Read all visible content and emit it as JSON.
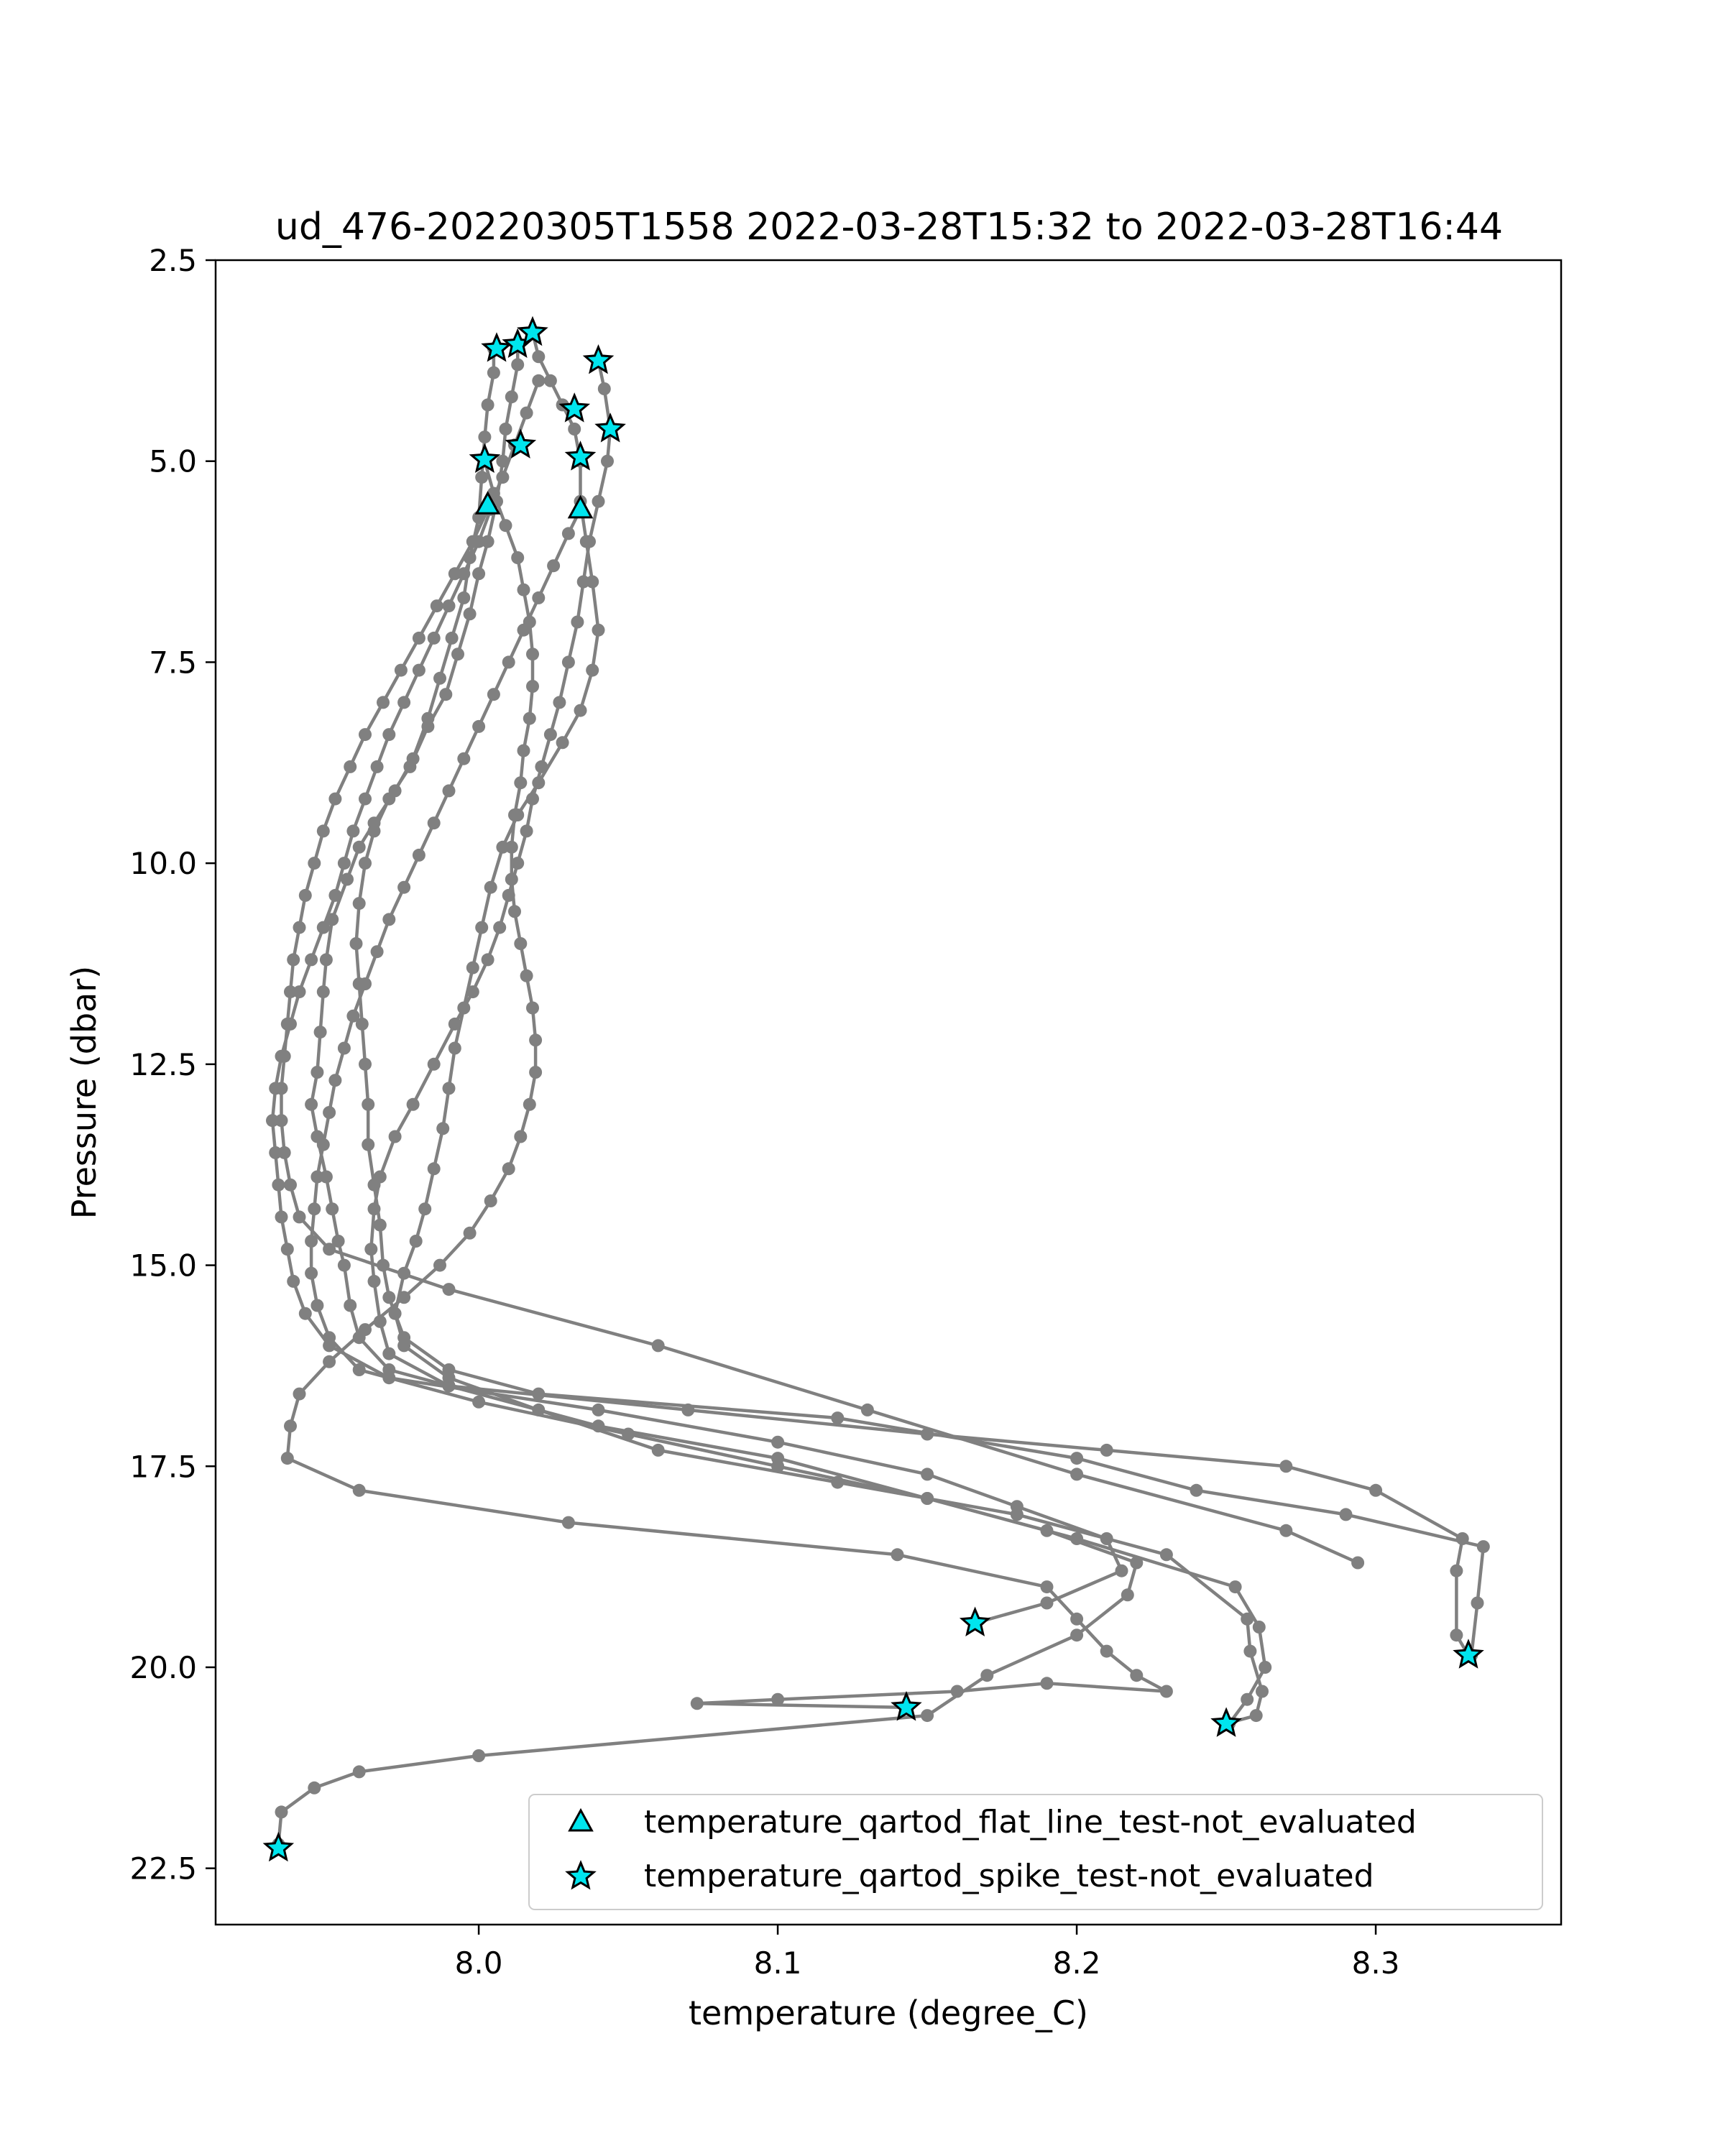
{
  "chart_data": {
    "type": "scatter",
    "title": "ud_476-20220305T1558 2022-03-28T15:32 to 2022-03-28T16:44",
    "xlabel": "temperature (degree_C)",
    "ylabel": "Pressure (dbar)",
    "xlim": [
      7.912,
      8.362
    ],
    "ylim": [
      23.2,
      2.5
    ],
    "y_inverted": true,
    "grid": false,
    "legend_position": "lower-right",
    "x_ticks": [
      8.0,
      8.1,
      8.2,
      8.3
    ],
    "x_tick_labels": [
      "8.0",
      "8.1",
      "8.2",
      "8.3"
    ],
    "y_ticks": [
      2.5,
      5.0,
      7.5,
      10.0,
      12.5,
      15.0,
      17.5,
      20.0,
      22.5
    ],
    "y_tick_labels": [
      "2.5",
      "5.0",
      "7.5",
      "10.0",
      "12.5",
      "15.0",
      "17.5",
      "20.0",
      "22.5"
    ],
    "colors": {
      "profile": "#808080",
      "marker_fill": "#00e5ee",
      "marker_edge": "#000000"
    },
    "series": [
      {
        "kind": "profile",
        "x": [
          8.005,
          8.005,
          8.003,
          8.002,
          8.001,
          8.0,
          7.997,
          7.995,
          7.991,
          7.987,
          7.983,
          7.978,
          7.972,
          7.965,
          7.96,
          7.956,
          7.951,
          7.949,
          7.948,
          7.947,
          7.946,
          7.944,
          7.946,
          7.949,
          7.951,
          7.953,
          7.955,
          7.957,
          7.96,
          7.97,
          7.99,
          8.07,
          8.15,
          8.21,
          8.27,
          8.3,
          8.329,
          8.327,
          8.327,
          8.331
        ],
        "y": [
          3.6,
          3.9,
          4.3,
          4.7,
          5.2,
          5.7,
          6.2,
          6.7,
          7.2,
          7.7,
          8.2,
          8.7,
          9.1,
          9.5,
          9.8,
          10.2,
          10.7,
          11.2,
          11.6,
          12.1,
          12.6,
          13.0,
          13.4,
          13.9,
          14.3,
          14.7,
          15.0,
          15.5,
          15.9,
          16.3,
          16.5,
          16.8,
          17.1,
          17.3,
          17.5,
          17.8,
          18.4,
          18.8,
          19.6,
          19.85
        ]
      },
      {
        "kind": "profile",
        "x": [
          8.013,
          8.013,
          8.011,
          8.009,
          8.008,
          8.006,
          8.003,
          8.0,
          7.997,
          7.993,
          7.989,
          7.983,
          7.977,
          7.97,
          7.965,
          7.962,
          7.96,
          7.959,
          7.96,
          7.961,
          7.962,
          7.963,
          7.963,
          7.965,
          7.967,
          7.968,
          7.97,
          7.975,
          7.99,
          8.02,
          8.12,
          8.2,
          8.24,
          8.29,
          8.336,
          8.334,
          8.332
        ],
        "y": [
          3.55,
          3.8,
          4.2,
          4.6,
          5.0,
          5.5,
          6.0,
          6.4,
          6.9,
          7.4,
          7.9,
          8.3,
          8.8,
          9.2,
          9.6,
          10.0,
          10.5,
          11.0,
          11.5,
          12.0,
          12.5,
          13.0,
          13.5,
          14.0,
          14.5,
          15.0,
          15.4,
          15.9,
          16.3,
          16.6,
          16.9,
          17.4,
          17.8,
          18.1,
          18.5,
          19.2,
          19.85
        ]
      },
      {
        "kind": "profile",
        "x": [
          8.018,
          8.02,
          8.024,
          8.028,
          8.032,
          8.034,
          8.034,
          8.036,
          8.038,
          8.04,
          8.038,
          8.034,
          8.028,
          8.02,
          8.013,
          8.008,
          8.004,
          8.001,
          7.998,
          7.995,
          7.992,
          7.99,
          7.988,
          7.985,
          7.982,
          7.979,
          7.975,
          7.972,
          7.975,
          7.99,
          8.02,
          8.06,
          8.12,
          8.18,
          8.23,
          8.257,
          8.258,
          8.262,
          8.26,
          8.25
        ],
        "y": [
          3.4,
          3.7,
          4.0,
          4.3,
          4.6,
          5.0,
          5.5,
          6.0,
          6.5,
          7.1,
          7.6,
          8.1,
          8.5,
          9.0,
          9.4,
          9.8,
          10.3,
          10.8,
          11.3,
          11.8,
          12.3,
          12.8,
          13.3,
          13.8,
          14.3,
          14.7,
          15.1,
          15.6,
          16.0,
          16.4,
          16.8,
          17.3,
          17.7,
          18.1,
          18.6,
          19.4,
          19.8,
          20.3,
          20.6,
          20.7
        ]
      },
      {
        "kind": "profile",
        "x": [
          8.04,
          8.042,
          8.044,
          8.043,
          8.04,
          8.037,
          8.035,
          8.033,
          8.03,
          8.027,
          8.024,
          8.021,
          8.018,
          8.016,
          8.013,
          8.01,
          8.007,
          8.003,
          7.998,
          7.992,
          7.985,
          7.978,
          7.972,
          7.967,
          7.965,
          7.964,
          7.965,
          7.967,
          7.97,
          7.99,
          8.04,
          8.1,
          8.15,
          8.2,
          8.253,
          8.261,
          8.263,
          8.257,
          8.251
        ],
        "y": [
          3.75,
          4.1,
          4.6,
          5.0,
          5.5,
          6.0,
          6.5,
          7.0,
          7.5,
          8.0,
          8.4,
          8.8,
          9.2,
          9.6,
          10.0,
          10.4,
          10.8,
          11.2,
          11.6,
          12.0,
          12.5,
          13.0,
          13.4,
          13.9,
          14.3,
          14.8,
          15.2,
          15.7,
          16.1,
          16.5,
          17.0,
          17.4,
          17.9,
          18.4,
          19.0,
          19.5,
          20.0,
          20.4,
          20.7
        ]
      },
      {
        "kind": "profile",
        "x": [
          8.002,
          8.005,
          8.009,
          8.013,
          8.015,
          8.017,
          8.018,
          8.018,
          8.017,
          8.015,
          8.014,
          8.012,
          8.011,
          8.011,
          8.012,
          8.014,
          8.016,
          8.018,
          8.019,
          8.019,
          8.017,
          8.014,
          8.01,
          8.004,
          7.997,
          7.987,
          7.975,
          7.962,
          7.95,
          7.94,
          7.937,
          7.936,
          7.96,
          8.03,
          8.14,
          8.19,
          8.2,
          8.21,
          8.22,
          8.23,
          8.19,
          8.16,
          8.1,
          8.073,
          8.143
        ],
        "y": [
          5.0,
          5.4,
          5.8,
          6.2,
          6.6,
          7.0,
          7.4,
          7.8,
          8.2,
          8.6,
          9.0,
          9.4,
          9.8,
          10.2,
          10.6,
          11.0,
          11.4,
          11.8,
          12.2,
          12.6,
          13.0,
          13.4,
          13.8,
          14.2,
          14.6,
          15.0,
          15.4,
          15.8,
          16.2,
          16.6,
          17.0,
          17.4,
          17.8,
          18.2,
          18.6,
          19.0,
          19.4,
          19.8,
          20.1,
          20.3,
          20.2,
          20.3,
          20.4,
          20.45,
          20.5
        ]
      },
      {
        "kind": "profile",
        "x": [
          8.004,
          8.0,
          7.995,
          7.99,
          7.985,
          7.98,
          7.975,
          7.97,
          7.966,
          7.962,
          7.958,
          7.955,
          7.952,
          7.948,
          7.944,
          7.94,
          7.937,
          7.934,
          7.932,
          7.931,
          7.932,
          7.933,
          7.934,
          7.936,
          7.938,
          7.942,
          7.95,
          7.97,
          8.04,
          8.1,
          8.15,
          8.18,
          8.21,
          8.215,
          8.19,
          8.166
        ],
        "y": [
          5.6,
          6.0,
          6.4,
          6.8,
          7.2,
          7.6,
          8.0,
          8.4,
          8.8,
          9.2,
          9.6,
          10.0,
          10.4,
          10.8,
          11.2,
          11.6,
          12.0,
          12.4,
          12.8,
          13.2,
          13.6,
          14.0,
          14.4,
          14.8,
          15.2,
          15.6,
          16.0,
          16.4,
          16.8,
          17.2,
          17.6,
          18.0,
          18.4,
          18.8,
          19.2,
          19.45
        ]
      },
      {
        "kind": "profile",
        "x": [
          8.034,
          8.03,
          8.025,
          8.02,
          8.015,
          8.01,
          8.005,
          8.0,
          7.995,
          7.99,
          7.985,
          7.98,
          7.975,
          7.97,
          7.966,
          7.962,
          7.958,
          7.955,
          7.952,
          7.95,
          7.948,
          7.946,
          7.945,
          7.944,
          7.944,
          7.946,
          7.95,
          7.96,
          8.0,
          8.05,
          8.1,
          8.15,
          8.19,
          8.22,
          8.217,
          8.2,
          8.17,
          8.15,
          8.0,
          7.96,
          7.945,
          7.934,
          7.933
        ],
        "y": [
          5.6,
          5.9,
          6.3,
          6.7,
          7.1,
          7.5,
          7.9,
          8.3,
          8.7,
          9.1,
          9.5,
          9.9,
          10.3,
          10.7,
          11.1,
          11.5,
          11.9,
          12.3,
          12.7,
          13.1,
          13.5,
          13.9,
          14.3,
          14.7,
          15.1,
          15.5,
          15.9,
          16.3,
          16.7,
          17.1,
          17.5,
          17.9,
          18.3,
          18.7,
          19.1,
          19.6,
          20.1,
          20.6,
          21.1,
          21.3,
          21.5,
          21.8,
          22.2
        ]
      },
      {
        "kind": "profile",
        "x": [
          8.02,
          8.016,
          8.012,
          8.008,
          8.003,
          7.998,
          7.992,
          7.986,
          7.98,
          7.974,
          7.968,
          7.962,
          7.957,
          7.952,
          7.948,
          7.945,
          7.942,
          7.94,
          7.938,
          7.937,
          7.936,
          7.935,
          7.934,
          7.934,
          7.935,
          7.937,
          7.94,
          7.95,
          7.99,
          8.06,
          8.13,
          8.2,
          8.27,
          8.294
        ],
        "y": [
          4.0,
          4.4,
          4.8,
          5.2,
          5.6,
          6.0,
          6.4,
          6.8,
          7.2,
          7.6,
          8.0,
          8.4,
          8.8,
          9.2,
          9.6,
          10.0,
          10.4,
          10.8,
          11.2,
          11.6,
          12.0,
          12.4,
          12.8,
          13.2,
          13.6,
          14.0,
          14.4,
          14.8,
          15.3,
          16.0,
          16.8,
          17.6,
          18.3,
          18.7
        ]
      }
    ],
    "flagged_points": [
      {
        "flag": "temperature_qartod_flat_line_test-not_evaluated",
        "marker": "triangle",
        "x": [
          8.003,
          8.034
        ],
        "y": [
          5.55,
          5.6
        ]
      },
      {
        "flag": "temperature_qartod_spike_test-not_evaluated",
        "marker": "star",
        "x": [
          8.006,
          8.013,
          8.018,
          8.04,
          8.032,
          8.044,
          8.014,
          8.002,
          8.034,
          8.166,
          8.143,
          8.25,
          8.331,
          7.933
        ],
        "y": [
          3.6,
          3.55,
          3.4,
          3.75,
          4.35,
          4.6,
          4.8,
          4.98,
          4.95,
          19.45,
          20.5,
          20.7,
          19.85,
          22.25
        ]
      }
    ],
    "legend": [
      {
        "label": "temperature_qartod_flat_line_test-not_evaluated",
        "marker": "triangle"
      },
      {
        "label": "temperature_qartod_spike_test-not_evaluated",
        "marker": "star"
      }
    ]
  }
}
